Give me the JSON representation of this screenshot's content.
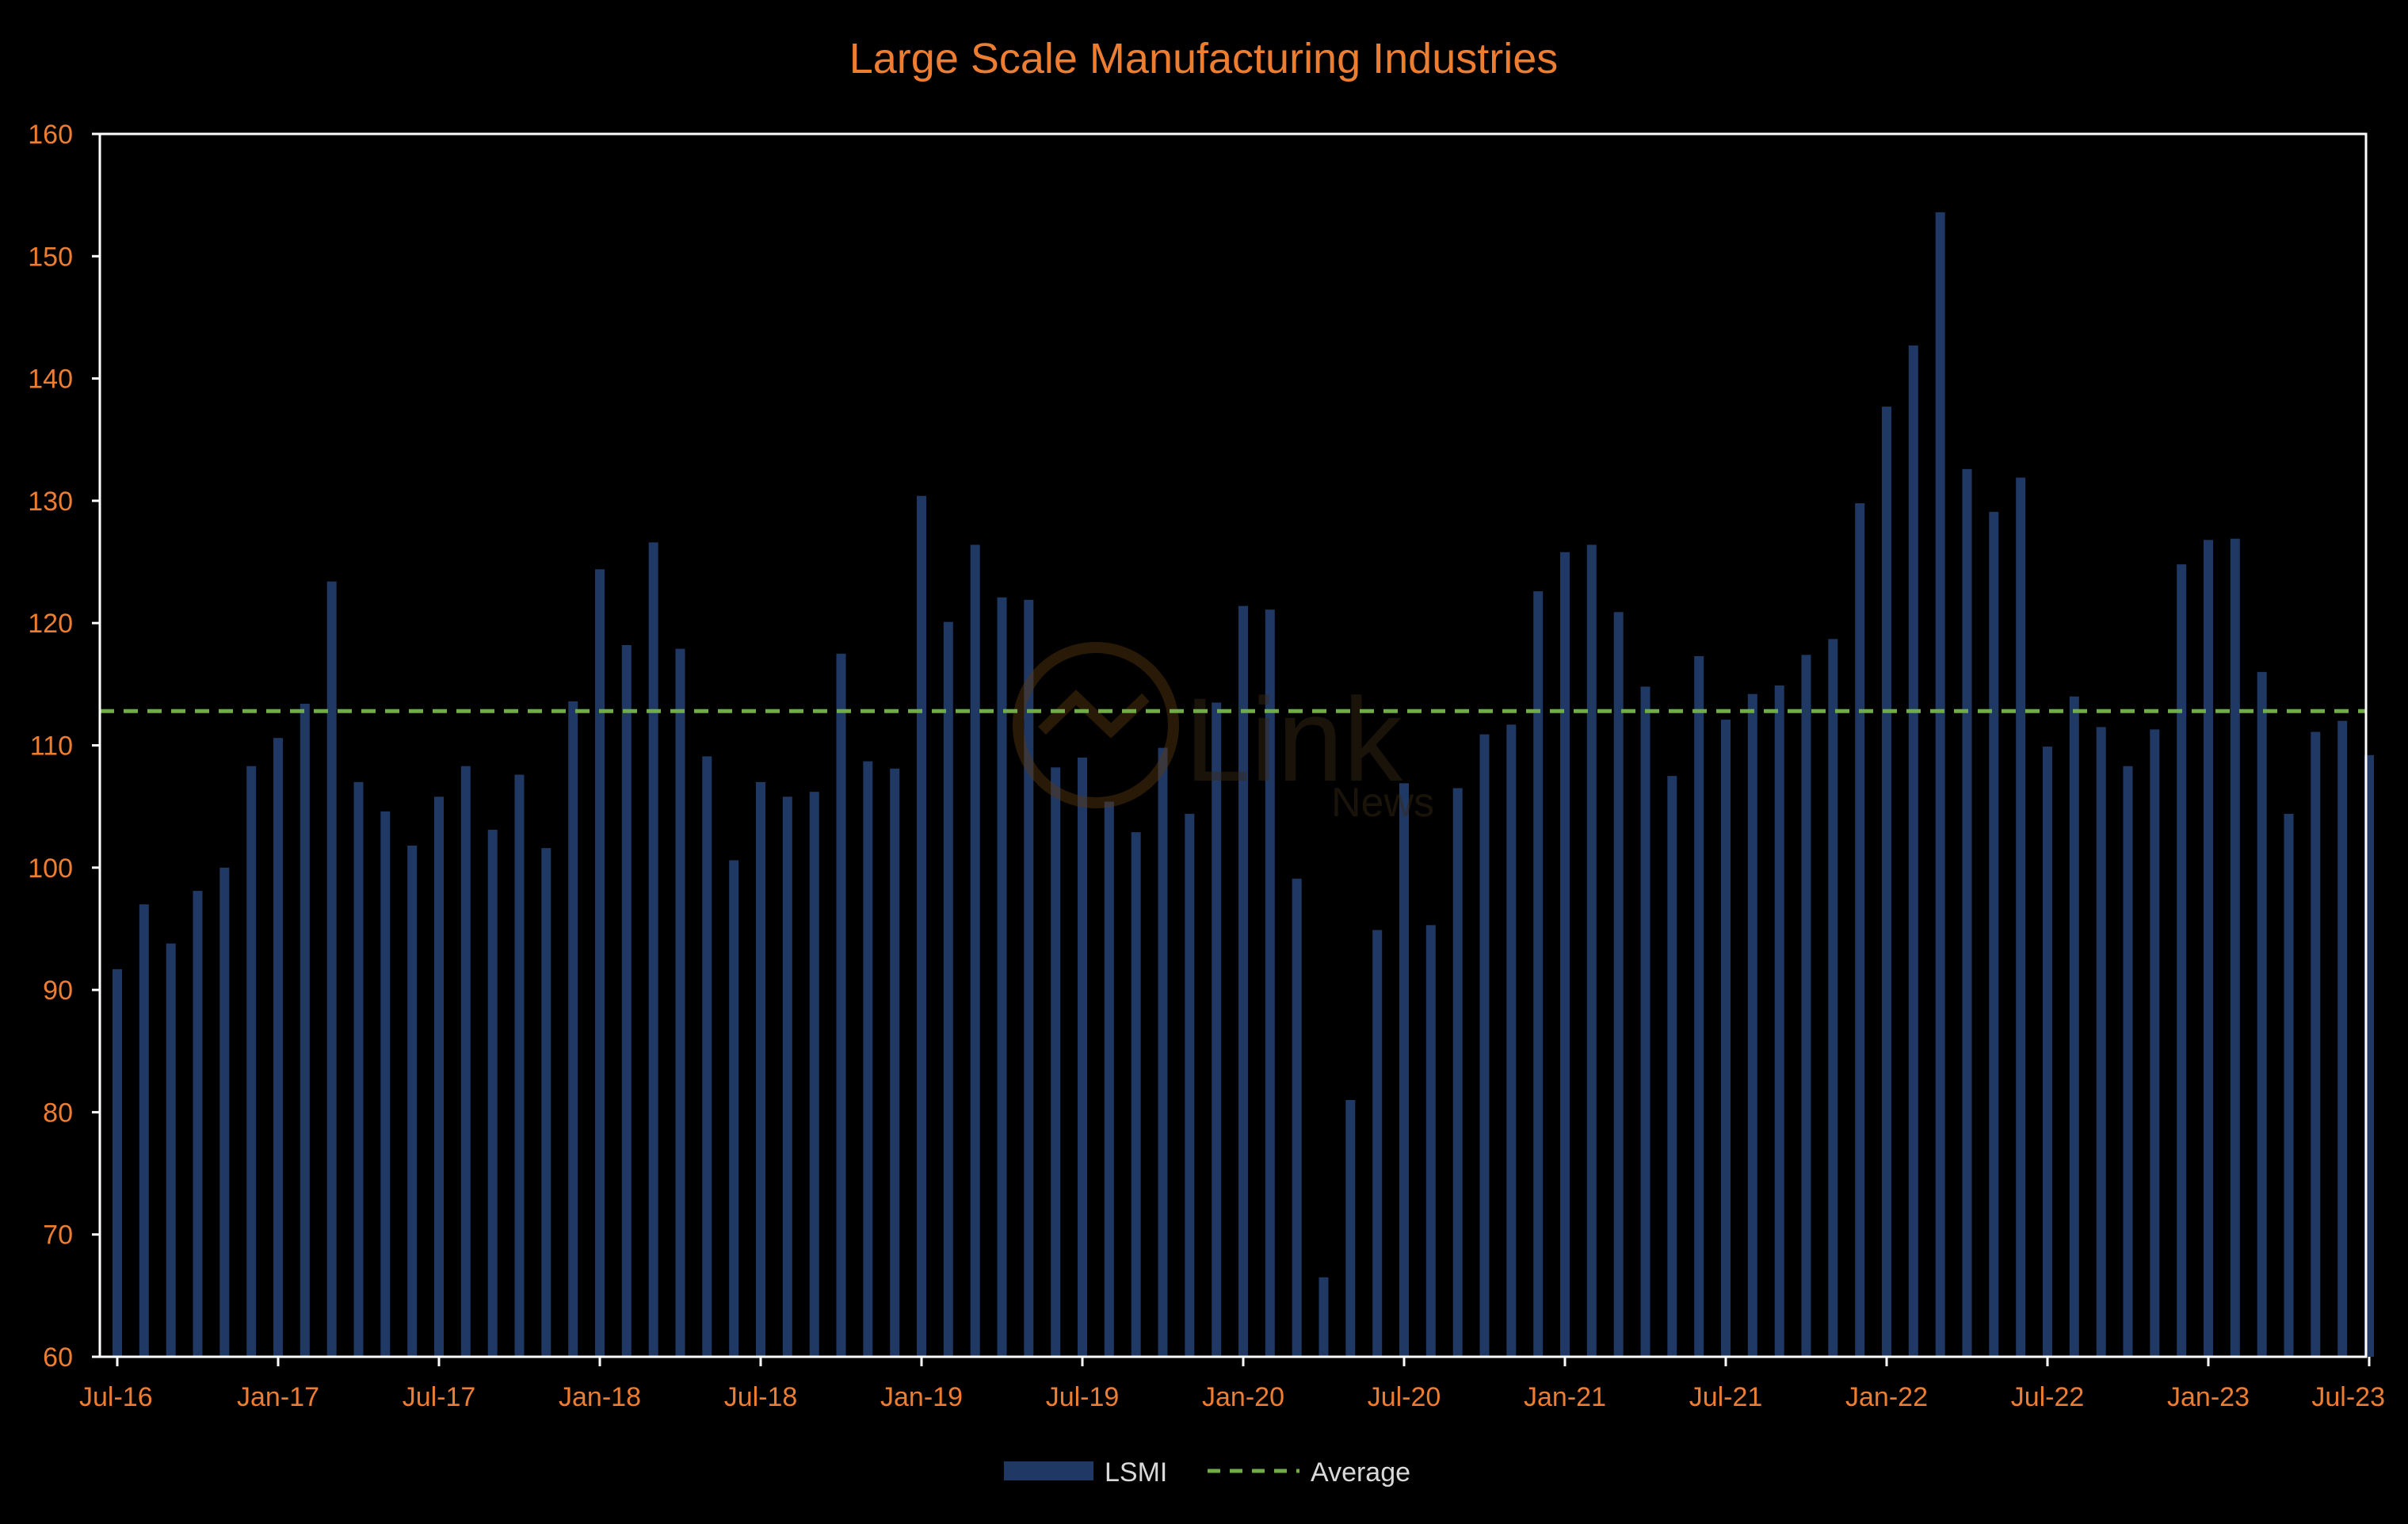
{
  "colors": {
    "background": "#000000",
    "bars": "#203864",
    "average_line": "#70AD47",
    "text": "#ED7D31",
    "legend_text": "#D9D9D9",
    "axis": "#FFFFFF"
  },
  "chart_data": {
    "type": "bar",
    "title": "Large Scale Manufacturing Industries",
    "xlabel": "",
    "ylabel": "",
    "ylim": [
      60,
      160
    ],
    "yticks": [
      60,
      70,
      80,
      90,
      100,
      110,
      120,
      130,
      140,
      150,
      160
    ],
    "xtick_labels": [
      "Jul-16",
      "Jan-17",
      "Jul-17",
      "Jan-18",
      "Jul-18",
      "Jan-19",
      "Jul-19",
      "Jan-20",
      "Jul-20",
      "Jan-21",
      "Jul-21",
      "Jan-22",
      "Jul-22",
      "Jan-23",
      "Jul-23"
    ],
    "grid": false,
    "legend_position": "bottom",
    "categories": [
      "Jul-16",
      "Aug-16",
      "Sep-16",
      "Oct-16",
      "Nov-16",
      "Dec-16",
      "Jan-17",
      "Feb-17",
      "Mar-17",
      "Apr-17",
      "May-17",
      "Jun-17",
      "Jul-17",
      "Aug-17",
      "Sep-17",
      "Oct-17",
      "Nov-17",
      "Dec-17",
      "Jan-18",
      "Feb-18",
      "Mar-18",
      "Apr-18",
      "May-18",
      "Jun-18",
      "Jul-18",
      "Aug-18",
      "Sep-18",
      "Oct-18",
      "Nov-18",
      "Dec-18",
      "Jan-19",
      "Feb-19",
      "Mar-19",
      "Apr-19",
      "May-19",
      "Jun-19",
      "Jul-19",
      "Aug-19",
      "Sep-19",
      "Oct-19",
      "Nov-19",
      "Dec-19",
      "Jan-20",
      "Feb-20",
      "Mar-20",
      "Apr-20",
      "May-20",
      "Jun-20",
      "Jul-20",
      "Aug-20",
      "Sep-20",
      "Oct-20",
      "Nov-20",
      "Dec-20",
      "Jan-21",
      "Feb-21",
      "Mar-21",
      "Apr-21",
      "May-21",
      "Jun-21",
      "Jul-21",
      "Aug-21",
      "Sep-21",
      "Oct-21",
      "Nov-21",
      "Dec-21",
      "Jan-22",
      "Feb-22",
      "Mar-22",
      "Apr-22",
      "May-22",
      "Jun-22",
      "Jul-22",
      "Aug-22",
      "Sep-22",
      "Oct-22",
      "Nov-22",
      "Dec-22",
      "Jan-23",
      "Feb-23",
      "Mar-23",
      "Apr-23",
      "May-23",
      "Jun-23",
      "Jul-23"
    ],
    "series": [
      {
        "name": "LSMI",
        "type": "bar",
        "values": [
          91.7,
          97.0,
          93.8,
          98.1,
          100.0,
          108.3,
          110.6,
          113.4,
          123.4,
          107.0,
          104.6,
          101.8,
          105.8,
          108.3,
          103.1,
          107.6,
          101.6,
          113.6,
          124.4,
          118.2,
          126.6,
          117.9,
          109.1,
          100.6,
          107.0,
          105.8,
          106.2,
          117.5,
          108.7,
          108.1,
          130.4,
          120.1,
          126.4,
          122.1,
          121.9,
          108.2,
          109.0,
          105.4,
          102.9,
          109.8,
          104.4,
          113.5,
          121.4,
          121.1,
          99.1,
          66.5,
          81.0,
          94.9,
          106.9,
          95.3,
          106.5,
          110.9,
          111.7,
          122.6,
          125.8,
          126.4,
          120.9,
          114.8,
          107.5,
          117.3,
          112.1,
          114.2,
          114.9,
          117.4,
          118.7,
          129.8,
          137.7,
          142.7,
          153.6,
          132.6,
          129.1,
          131.9,
          109.9,
          114.0,
          111.5,
          108.3,
          111.3,
          124.8,
          126.8,
          126.9,
          116.0,
          104.4,
          111.1,
          112.0,
          109.2
        ]
      },
      {
        "name": "Average",
        "type": "line",
        "style": "dashed",
        "value": 112.8
      }
    ]
  },
  "watermark": {
    "brand": "Link",
    "sub": "News"
  }
}
